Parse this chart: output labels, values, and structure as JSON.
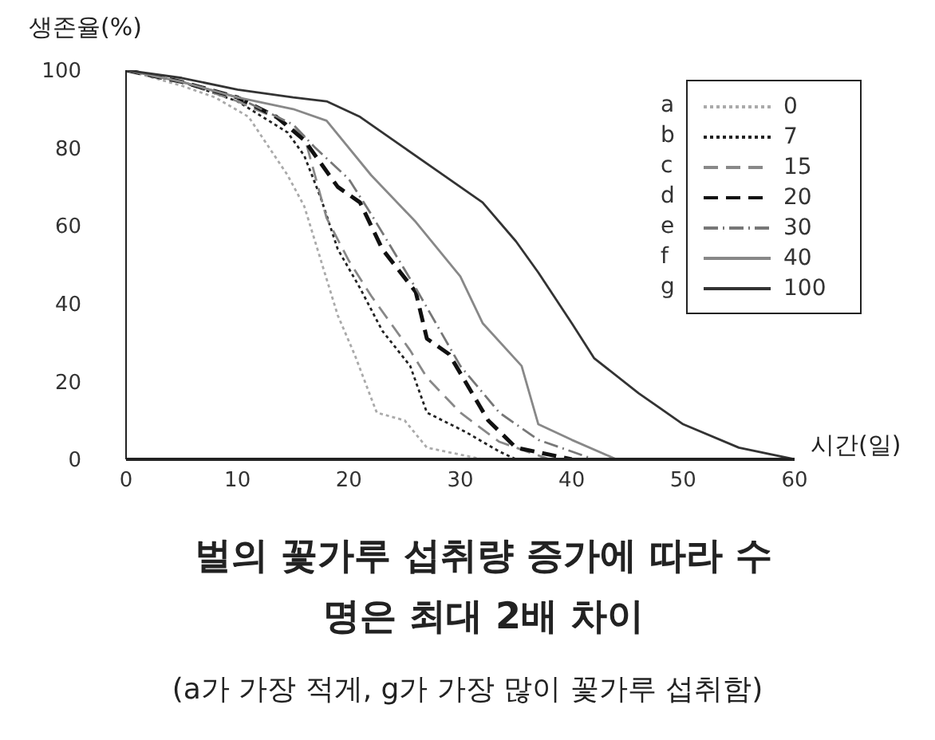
{
  "chart_data": {
    "type": "line",
    "title": "벌의 꽃가루 섭취량 증가에 따라 수명은 최대 2배 차이",
    "subtitle": "(a가 가장 적게, g가 가장 많이 꽃가루 섭취함)",
    "ylabel": "생존율(%)",
    "xlabel": "시간(일)",
    "xlim": [
      0,
      60
    ],
    "xticks": [
      0,
      10,
      20,
      30,
      40,
      50,
      60
    ],
    "ylim": [
      0,
      100
    ],
    "yticks": [
      0,
      20,
      40,
      60,
      80,
      100
    ],
    "grid": false,
    "legend": "top right",
    "annotations": [
      "a",
      "b",
      "c",
      "d",
      "e",
      "f",
      "g"
    ],
    "series": [
      {
        "name": "0",
        "color": "#aaaaaa",
        "line_style": "dotted",
        "x": [
          0,
          5,
          8,
          11,
          14.5,
          16,
          17.5,
          19,
          20.5,
          22.5,
          25,
          27,
          32
        ],
        "values": [
          100,
          96,
          93,
          88,
          73,
          65,
          51,
          37,
          27,
          12,
          10,
          3,
          0
        ]
      },
      {
        "name": "7",
        "color": "#222222",
        "line_style": "dotted",
        "x": [
          0,
          5,
          10,
          14.5,
          16,
          17.5,
          19,
          21,
          23,
          25.5,
          27,
          30.5,
          33.5,
          35
        ],
        "values": [
          100,
          97,
          92,
          84,
          78,
          67,
          54,
          44,
          33,
          24,
          12,
          7,
          2,
          0
        ]
      },
      {
        "name": "15",
        "color": "#888888",
        "line_style": "dashed",
        "x": [
          0,
          5,
          10,
          14,
          16,
          18,
          20,
          22,
          25.5,
          27,
          30,
          33.5,
          38
        ],
        "values": [
          100,
          97,
          92,
          87,
          83,
          62,
          51,
          42,
          28,
          21,
          12,
          4.5,
          0
        ]
      },
      {
        "name": "20",
        "color": "#111111",
        "line_style": "dashed",
        "x": [
          0,
          5,
          10,
          13.5,
          16,
          19,
          21,
          23,
          26,
          27,
          29,
          32.5,
          35,
          40
        ],
        "values": [
          100,
          97,
          93,
          88,
          82,
          70,
          66,
          54,
          43,
          31,
          27,
          10,
          3,
          0
        ]
      },
      {
        "name": "30",
        "color": "#777777",
        "line_style": "dashdot",
        "x": [
          0,
          5,
          10,
          15,
          17,
          20,
          22,
          26,
          30,
          33.5,
          37,
          42
        ],
        "values": [
          100,
          97,
          93,
          86,
          80,
          72,
          63,
          44,
          24,
          12,
          5,
          0
        ]
      },
      {
        "name": "40",
        "color": "#888888",
        "line_style": "solid",
        "x": [
          0,
          5,
          10,
          15,
          18,
          22,
          26,
          30,
          32,
          35.5,
          37,
          40,
          44
        ],
        "values": [
          100,
          97,
          93,
          90,
          87,
          73,
          61,
          47,
          35,
          24,
          9,
          5,
          0
        ]
      },
      {
        "name": "100",
        "color": "#333333",
        "line_style": "solid",
        "x": [
          0,
          5,
          10,
          15,
          18,
          21,
          25,
          28,
          32,
          35,
          37,
          40,
          42,
          46,
          50,
          55,
          60
        ],
        "values": [
          100,
          98,
          95,
          93,
          92,
          88,
          80,
          74,
          66,
          56,
          48,
          35,
          26,
          17,
          9,
          3,
          0
        ]
      }
    ]
  }
}
